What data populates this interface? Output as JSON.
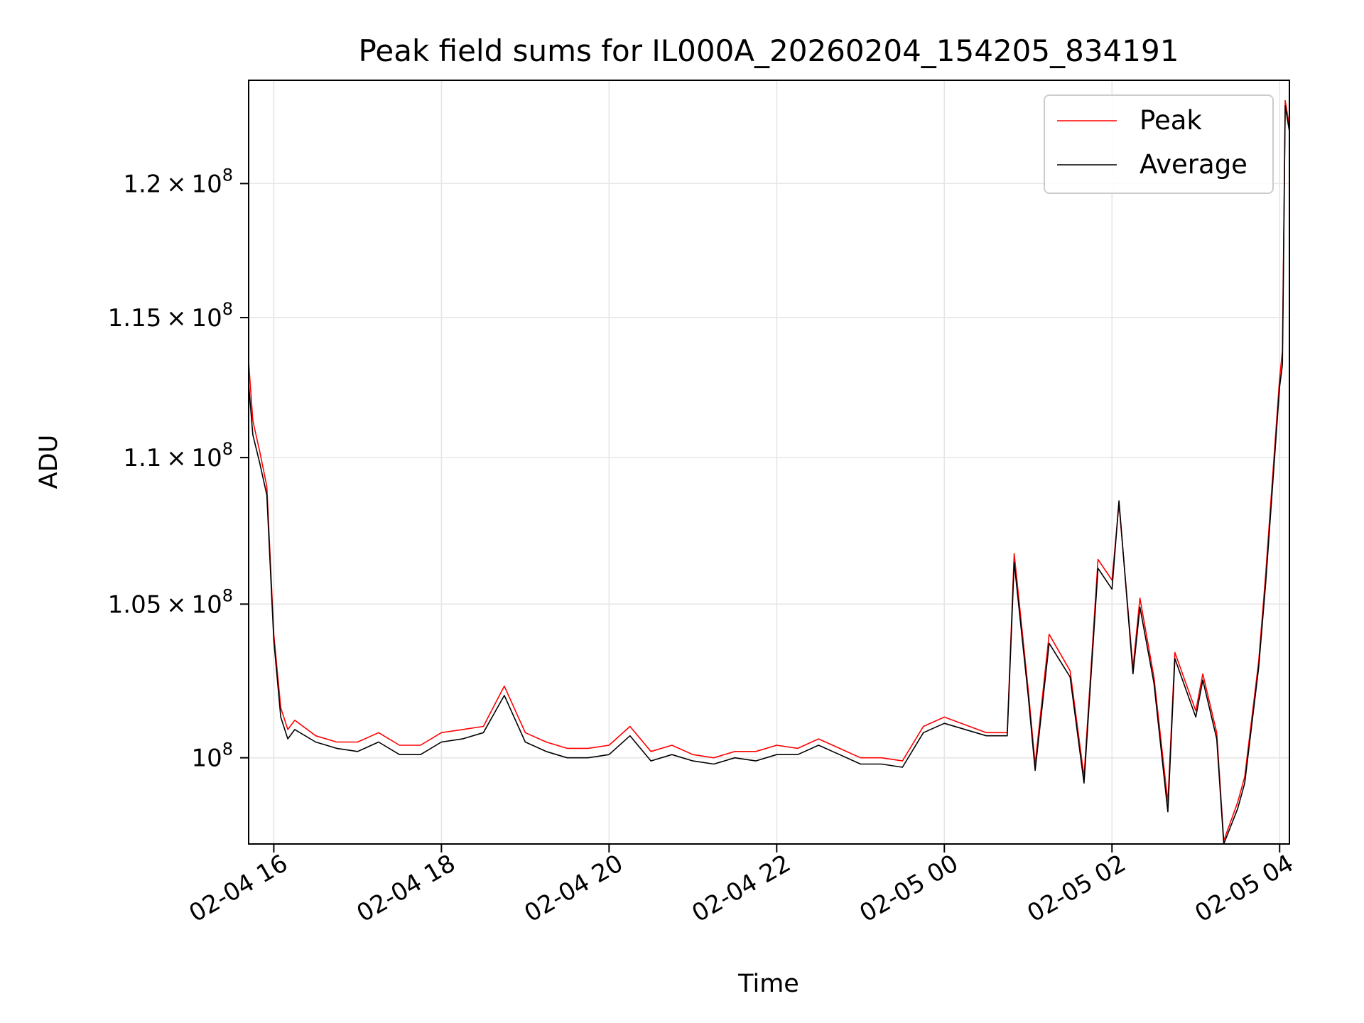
{
  "chart_data": {
    "type": "line",
    "title": "Peak field sums for IL000A_20260204_154205_834191",
    "xlabel": "Time",
    "ylabel": "ADU",
    "y_scale": "log",
    "grid": true,
    "legend_position": "top-right",
    "x_range": [
      "2026-02-04 15:42",
      "2026-02-05 04:07"
    ],
    "ylim": [
      97300000,
      124000000
    ],
    "x_ticks": [
      {
        "value": "2026-02-04 16:00",
        "label": "02-04 16"
      },
      {
        "value": "2026-02-04 18:00",
        "label": "02-04 18"
      },
      {
        "value": "2026-02-04 20:00",
        "label": "02-04 20"
      },
      {
        "value": "2026-02-04 22:00",
        "label": "02-04 22"
      },
      {
        "value": "2026-02-05 00:00",
        "label": "02-05 00"
      },
      {
        "value": "2026-02-05 02:00",
        "label": "02-05 02"
      },
      {
        "value": "2026-02-05 04:00",
        "label": "02-05 04"
      }
    ],
    "y_ticks": [
      {
        "value": 100000000,
        "mantissa": "",
        "exponent": "8"
      },
      {
        "value": 105000000,
        "mantissa": "1.05",
        "exponent": "8"
      },
      {
        "value": 110000000,
        "mantissa": "1.1",
        "exponent": "8"
      },
      {
        "value": 115000000,
        "mantissa": "1.15",
        "exponent": "8"
      },
      {
        "value": 120000000,
        "mantissa": "1.2",
        "exponent": "8"
      }
    ],
    "series": [
      {
        "name": "Peak",
        "color": "#ff0000",
        "x": [
          "2026-02-04 15:42",
          "2026-02-04 15:45",
          "2026-02-04 15:50",
          "2026-02-04 15:55",
          "2026-02-04 16:00",
          "2026-02-04 16:05",
          "2026-02-04 16:10",
          "2026-02-04 16:15",
          "2026-02-04 16:30",
          "2026-02-04 16:45",
          "2026-02-04 17:00",
          "2026-02-04 17:15",
          "2026-02-04 17:30",
          "2026-02-04 17:45",
          "2026-02-04 18:00",
          "2026-02-04 18:15",
          "2026-02-04 18:30",
          "2026-02-04 18:45",
          "2026-02-04 19:00",
          "2026-02-04 19:15",
          "2026-02-04 19:30",
          "2026-02-04 19:45",
          "2026-02-04 20:00",
          "2026-02-04 20:15",
          "2026-02-04 20:30",
          "2026-02-04 20:45",
          "2026-02-04 21:00",
          "2026-02-04 21:15",
          "2026-02-04 21:30",
          "2026-02-04 21:45",
          "2026-02-04 22:00",
          "2026-02-04 22:15",
          "2026-02-04 22:30",
          "2026-02-04 22:45",
          "2026-02-04 23:00",
          "2026-02-04 23:15",
          "2026-02-04 23:30",
          "2026-02-04 23:45",
          "2026-02-05 00:00",
          "2026-02-05 00:30",
          "2026-02-05 00:45",
          "2026-02-05 00:50",
          "2026-02-05 01:00",
          "2026-02-05 01:05",
          "2026-02-05 01:15",
          "2026-02-05 01:30",
          "2026-02-05 01:40",
          "2026-02-05 01:50",
          "2026-02-05 02:00",
          "2026-02-05 02:05",
          "2026-02-05 02:15",
          "2026-02-05 02:20",
          "2026-02-05 02:30",
          "2026-02-05 02:40",
          "2026-02-05 02:45",
          "2026-02-05 03:00",
          "2026-02-05 03:05",
          "2026-02-05 03:15",
          "2026-02-05 03:20",
          "2026-02-05 03:30",
          "2026-02-05 03:35",
          "2026-02-05 03:45",
          "2026-02-05 03:50",
          "2026-02-05 04:00",
          "2026-02-05 04:02",
          "2026-02-05 04:04",
          "2026-02-05 04:07"
        ],
        "y": [
          113400000,
          111300000,
          110200000,
          109000000,
          104000000,
          101600000,
          100900000,
          101200000,
          100700000,
          100500000,
          100500000,
          100800000,
          100400000,
          100400000,
          100800000,
          100900000,
          101000000,
          102300000,
          100800000,
          100500000,
          100300000,
          100300000,
          100400000,
          101000000,
          100200000,
          100400000,
          100100000,
          100000000,
          100200000,
          100200000,
          100400000,
          100300000,
          100600000,
          100300000,
          100000000,
          100000000,
          99900000,
          101000000,
          101300000,
          100800000,
          100800000,
          106700000,
          102200000,
          99800000,
          104000000,
          102800000,
          99400000,
          106500000,
          105800000,
          108400000,
          102900000,
          105200000,
          102600000,
          98600000,
          103400000,
          101500000,
          102700000,
          100800000,
          97400000,
          98600000,
          99400000,
          103100000,
          106000000,
          112800000,
          113800000,
          123200000,
          122200000
        ]
      },
      {
        "name": "Average",
        "color": "#000000",
        "x": [
          "2026-02-04 15:42",
          "2026-02-04 15:45",
          "2026-02-04 15:50",
          "2026-02-04 15:55",
          "2026-02-04 16:00",
          "2026-02-04 16:05",
          "2026-02-04 16:10",
          "2026-02-04 16:15",
          "2026-02-04 16:30",
          "2026-02-04 16:45",
          "2026-02-04 17:00",
          "2026-02-04 17:15",
          "2026-02-04 17:30",
          "2026-02-04 17:45",
          "2026-02-04 18:00",
          "2026-02-04 18:15",
          "2026-02-04 18:30",
          "2026-02-04 18:45",
          "2026-02-04 19:00",
          "2026-02-04 19:15",
          "2026-02-04 19:30",
          "2026-02-04 19:45",
          "2026-02-04 20:00",
          "2026-02-04 20:15",
          "2026-02-04 20:30",
          "2026-02-04 20:45",
          "2026-02-04 21:00",
          "2026-02-04 21:15",
          "2026-02-04 21:30",
          "2026-02-04 21:45",
          "2026-02-04 22:00",
          "2026-02-04 22:15",
          "2026-02-04 22:30",
          "2026-02-04 22:45",
          "2026-02-04 23:00",
          "2026-02-04 23:15",
          "2026-02-04 23:30",
          "2026-02-04 23:45",
          "2026-02-05 00:00",
          "2026-02-05 00:30",
          "2026-02-05 00:45",
          "2026-02-05 00:50",
          "2026-02-05 01:00",
          "2026-02-05 01:05",
          "2026-02-05 01:15",
          "2026-02-05 01:30",
          "2026-02-05 01:40",
          "2026-02-05 01:50",
          "2026-02-05 02:00",
          "2026-02-05 02:05",
          "2026-02-05 02:15",
          "2026-02-05 02:20",
          "2026-02-05 02:30",
          "2026-02-05 02:40",
          "2026-02-05 02:45",
          "2026-02-05 03:00",
          "2026-02-05 03:05",
          "2026-02-05 03:15",
          "2026-02-05 03:20",
          "2026-02-05 03:30",
          "2026-02-05 03:35",
          "2026-02-05 03:45",
          "2026-02-05 03:50",
          "2026-02-05 04:00",
          "2026-02-05 04:02",
          "2026-02-05 04:04",
          "2026-02-05 04:07"
        ],
        "y": [
          112600000,
          110800000,
          109800000,
          108700000,
          103800000,
          101300000,
          100600000,
          100900000,
          100500000,
          100300000,
          100200000,
          100500000,
          100100000,
          100100000,
          100500000,
          100600000,
          100800000,
          102000000,
          100500000,
          100200000,
          100000000,
          100000000,
          100100000,
          100700000,
          99900000,
          100100000,
          99900000,
          99800000,
          100000000,
          99900000,
          100100000,
          100100000,
          100400000,
          100100000,
          99800000,
          99800000,
          99700000,
          100800000,
          101100000,
          100700000,
          100700000,
          106400000,
          102000000,
          99600000,
          103700000,
          102600000,
          99200000,
          106200000,
          105500000,
          108500000,
          102700000,
          104900000,
          102400000,
          98300000,
          103200000,
          101300000,
          102500000,
          100600000,
          97300000,
          98400000,
          99200000,
          102900000,
          105700000,
          112500000,
          113300000,
          123000000,
          122000000
        ]
      }
    ]
  }
}
